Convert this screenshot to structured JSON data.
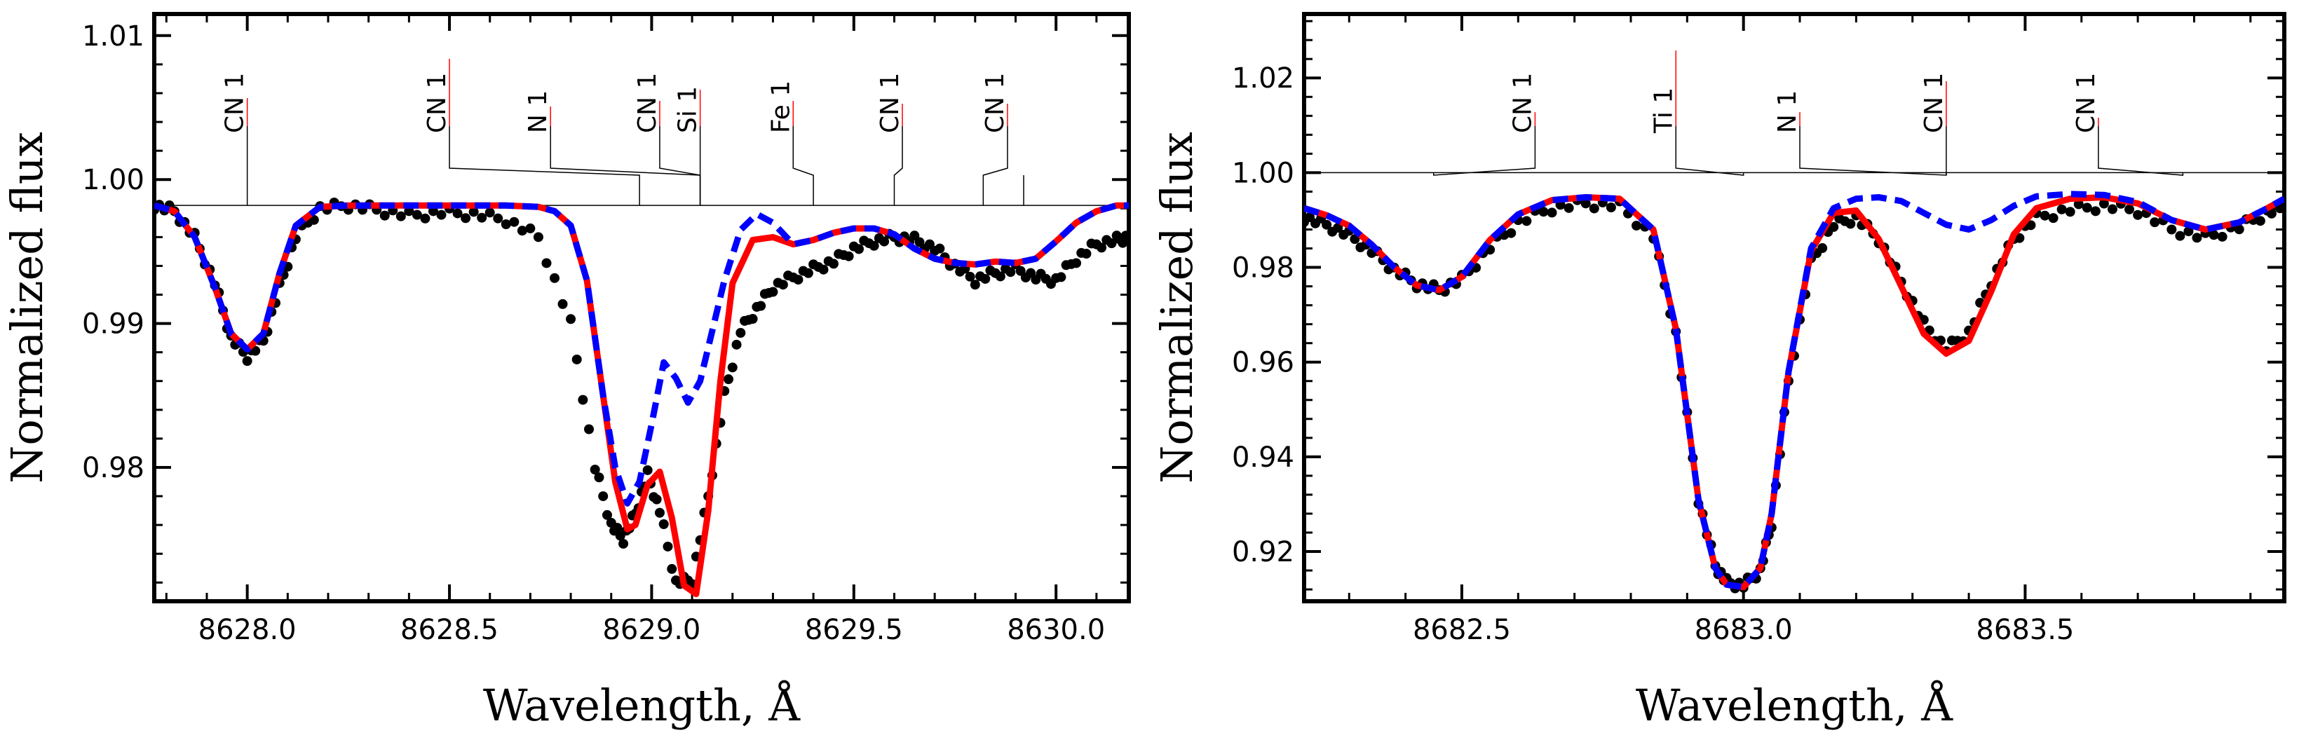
{
  "chart_data": [
    {
      "type": "line",
      "panel": "left",
      "xlabel": "Wavelength, Å",
      "ylabel": "Normalized flux",
      "xlim": [
        8627.77,
        8630.18
      ],
      "ylim": [
        0.9707,
        1.0115
      ],
      "xticks": [
        8628.0,
        8628.5,
        8629.0,
        8629.5,
        8630.0
      ],
      "xtick_labels": [
        "8628.0",
        "8628.5",
        "8629.0",
        "8629.5",
        "8630.0"
      ],
      "yticks": [
        0.98,
        0.99,
        1.0,
        1.01
      ],
      "ytick_labels": [
        "0.98",
        "0.99",
        "1.00",
        "1.01"
      ],
      "continuum": 1.0,
      "continuum_y": 0.9982,
      "series": [
        {
          "name": "observed",
          "style": "points",
          "color": "#000000",
          "x": [
            8627.77,
            8627.82,
            8627.87,
            8627.92,
            8627.96,
            8628.0,
            8628.04,
            8628.08,
            8628.12,
            8628.18,
            8628.25,
            8628.32,
            8628.4,
            8628.48,
            8628.56,
            8628.64,
            8628.72,
            8628.8,
            8628.86,
            8628.9,
            8628.93,
            8628.96,
            8628.99,
            8629.02,
            8629.06,
            8629.1,
            8629.14,
            8629.18,
            8629.22,
            8629.26,
            8629.3,
            8629.35,
            8629.4,
            8629.45,
            8629.5,
            8629.55,
            8629.6,
            8629.65,
            8629.7,
            8629.75,
            8629.8,
            8629.85,
            8629.9,
            8629.95,
            8630.0,
            8630.05,
            8630.1,
            8630.15,
            8630.18
          ],
          "y": [
            0.9982,
            0.9978,
            0.996,
            0.9928,
            0.989,
            0.9877,
            0.9888,
            0.9925,
            0.996,
            0.998,
            0.9982,
            0.9979,
            0.9975,
            0.9977,
            0.9976,
            0.9972,
            0.996,
            0.99,
            0.98,
            0.976,
            0.975,
            0.9768,
            0.9795,
            0.977,
            0.972,
            0.9722,
            0.978,
            0.985,
            0.9895,
            0.991,
            0.9925,
            0.9932,
            0.9938,
            0.9943,
            0.9952,
            0.9957,
            0.996,
            0.9958,
            0.9952,
            0.994,
            0.993,
            0.9935,
            0.9938,
            0.9932,
            0.993,
            0.9945,
            0.9955,
            0.9958,
            0.996
          ]
        },
        {
          "name": "model (red solid)",
          "style": "solid",
          "color": "#ff0000",
          "x": [
            8627.77,
            8627.82,
            8627.87,
            8627.92,
            8627.96,
            8628.0,
            8628.04,
            8628.08,
            8628.12,
            8628.18,
            8628.25,
            8628.32,
            8628.4,
            8628.48,
            8628.56,
            8628.64,
            8628.72,
            8628.76,
            8628.8,
            8628.84,
            8628.88,
            8628.91,
            8628.94,
            8628.96,
            8628.99,
            8629.02,
            8629.05,
            8629.08,
            8629.11,
            8629.14,
            8629.17,
            8629.2,
            8629.25,
            8629.3,
            8629.35,
            8629.4,
            8629.45,
            8629.5,
            8629.55,
            8629.6,
            8629.65,
            8629.7,
            8629.75,
            8629.8,
            8629.85,
            8629.9,
            8629.95,
            8630.0,
            8630.05,
            8630.1,
            8630.15,
            8630.18
          ],
          "y": [
            0.9982,
            0.9978,
            0.996,
            0.9925,
            0.9893,
            0.9882,
            0.9893,
            0.9935,
            0.9968,
            0.9981,
            0.9982,
            0.9982,
            0.9982,
            0.9982,
            0.9982,
            0.9982,
            0.9981,
            0.9978,
            0.9968,
            0.993,
            0.985,
            0.979,
            0.9757,
            0.976,
            0.9788,
            0.9797,
            0.9765,
            0.9718,
            0.9712,
            0.977,
            0.986,
            0.9928,
            0.9958,
            0.996,
            0.9955,
            0.9958,
            0.9963,
            0.9966,
            0.9966,
            0.9962,
            0.9952,
            0.9945,
            0.9942,
            0.9941,
            0.9943,
            0.9942,
            0.9945,
            0.9957,
            0.997,
            0.9978,
            0.9982,
            0.9982
          ]
        },
        {
          "name": "model (blue dashed)",
          "style": "dashed",
          "color": "#0000ff",
          "x": [
            8627.77,
            8627.82,
            8627.87,
            8627.92,
            8627.96,
            8628.0,
            8628.04,
            8628.08,
            8628.12,
            8628.18,
            8628.25,
            8628.32,
            8628.4,
            8628.48,
            8628.56,
            8628.64,
            8628.72,
            8628.76,
            8628.8,
            8628.84,
            8628.88,
            8628.91,
            8628.94,
            8628.97,
            8629.0,
            8629.03,
            8629.06,
            8629.09,
            8629.12,
            8629.15,
            8629.18,
            8629.22,
            8629.26,
            8629.3,
            8629.35,
            8629.4,
            8629.45,
            8629.5,
            8629.55,
            8629.6,
            8629.65,
            8629.7,
            8629.75,
            8629.8,
            8629.85,
            8629.9,
            8629.95,
            8630.0,
            8630.05,
            8630.1,
            8630.15,
            8630.18
          ],
          "y": [
            0.9982,
            0.9978,
            0.996,
            0.9925,
            0.9893,
            0.9882,
            0.9893,
            0.9935,
            0.9968,
            0.9981,
            0.9982,
            0.9982,
            0.9982,
            0.9982,
            0.9982,
            0.9982,
            0.9981,
            0.9978,
            0.9968,
            0.993,
            0.985,
            0.98,
            0.9775,
            0.979,
            0.983,
            0.9873,
            0.9862,
            0.9845,
            0.986,
            0.9895,
            0.993,
            0.9965,
            0.9976,
            0.997,
            0.9955,
            0.9958,
            0.9963,
            0.9966,
            0.9966,
            0.9962,
            0.9952,
            0.9945,
            0.9942,
            0.9941,
            0.9943,
            0.9942,
            0.9945,
            0.9957,
            0.997,
            0.9978,
            0.9982,
            0.9982
          ]
        }
      ],
      "line_ids": [
        {
          "label": "CN 1",
          "wavelength": 8628.0,
          "strength": 1.0
        },
        {
          "label": "CN 1",
          "wavelength": 8628.5,
          "strength": 2.4
        },
        {
          "label": "N 1",
          "wavelength": 8628.75,
          "strength": 0.7
        },
        {
          "label": "CN 1",
          "wavelength": 8629.02,
          "strength": 0.9
        },
        {
          "label": "Si 1",
          "wavelength": 8629.12,
          "strength": 1.3
        },
        {
          "label": "Fe 1",
          "wavelength": 8629.35,
          "strength": 0.9
        },
        {
          "label": "CN 1",
          "wavelength": 8629.62,
          "strength": 0.8
        },
        {
          "label": "CN 1",
          "wavelength": 8629.88,
          "strength": 0.8
        }
      ],
      "line_marker_targets": [
        8628.0,
        8628.97,
        8629.12,
        8629.12,
        8629.12,
        8629.4,
        8629.6,
        8629.82,
        8629.92
      ]
    },
    {
      "type": "line",
      "panel": "right",
      "xlabel": "Wavelength, Å",
      "ylabel": "Normalized flux",
      "xlim": [
        8682.22,
        8683.96
      ],
      "ylim": [
        0.9095,
        1.0335
      ],
      "xticks": [
        8682.5,
        8683.0,
        8683.5
      ],
      "xtick_labels": [
        "8682.5",
        "8683.0",
        "8683.5"
      ],
      "yticks": [
        0.92,
        0.94,
        0.96,
        0.98,
        1.0,
        1.02
      ],
      "ytick_labels": [
        "0.92",
        "0.94",
        "0.96",
        "0.98",
        "1.00",
        "1.02"
      ],
      "continuum": 1.0,
      "continuum_y": 1.0,
      "series": [
        {
          "name": "observed",
          "style": "points",
          "color": "#000000",
          "x": [
            8682.22,
            8682.26,
            8682.3,
            8682.34,
            8682.38,
            8682.42,
            8682.46,
            8682.5,
            8682.55,
            8682.6,
            8682.66,
            8682.72,
            8682.78,
            8682.84,
            8682.88,
            8682.92,
            8682.95,
            8682.97,
            8683.0,
            8683.03,
            8683.05,
            8683.08,
            8683.12,
            8683.16,
            8683.2,
            8683.24,
            8683.28,
            8683.32,
            8683.36,
            8683.4,
            8683.44,
            8683.48,
            8683.52,
            8683.58,
            8683.64,
            8683.7,
            8683.76,
            8683.82,
            8683.88,
            8683.93,
            8683.96
          ],
          "y": [
            0.9905,
            0.989,
            0.9868,
            0.9835,
            0.9795,
            0.9765,
            0.9752,
            0.9775,
            0.9842,
            0.9895,
            0.9925,
            0.9935,
            0.993,
            0.9865,
            0.966,
            0.931,
            0.917,
            0.9135,
            0.9128,
            0.916,
            0.926,
            0.956,
            0.981,
            0.989,
            0.9905,
            0.986,
            0.977,
            0.968,
            0.9628,
            0.9662,
            0.977,
            0.986,
            0.9905,
            0.9922,
            0.993,
            0.992,
            0.988,
            0.9863,
            0.9885,
            0.9915,
            0.9928
          ]
        },
        {
          "name": "model (red solid)",
          "style": "solid",
          "color": "#ff0000",
          "x": [
            8682.22,
            8682.26,
            8682.3,
            8682.34,
            8682.38,
            8682.42,
            8682.46,
            8682.5,
            8682.55,
            8682.6,
            8682.66,
            8682.72,
            8682.78,
            8682.84,
            8682.88,
            8682.92,
            8682.95,
            8682.97,
            8683.0,
            8683.03,
            8683.05,
            8683.08,
            8683.12,
            8683.16,
            8683.2,
            8683.24,
            8683.28,
            8683.32,
            8683.36,
            8683.4,
            8683.44,
            8683.48,
            8683.52,
            8683.58,
            8683.64,
            8683.7,
            8683.76,
            8683.82,
            8683.88,
            8683.93,
            8683.96
          ],
          "y": [
            0.9925,
            0.991,
            0.9888,
            0.9848,
            0.98,
            0.9762,
            0.9752,
            0.978,
            0.9858,
            0.9912,
            0.9942,
            0.9948,
            0.9945,
            0.988,
            0.967,
            0.931,
            0.9165,
            0.913,
            0.9125,
            0.9165,
            0.928,
            0.958,
            0.9835,
            0.9915,
            0.992,
            0.986,
            0.976,
            0.966,
            0.9618,
            0.9645,
            0.975,
            0.987,
            0.9925,
            0.9945,
            0.9948,
            0.9935,
            0.99,
            0.988,
            0.9895,
            0.9925,
            0.9945
          ]
        },
        {
          "name": "model (blue dashed)",
          "style": "dashed",
          "color": "#0000ff",
          "x": [
            8682.22,
            8682.26,
            8682.3,
            8682.34,
            8682.38,
            8682.42,
            8682.46,
            8682.5,
            8682.55,
            8682.6,
            8682.66,
            8682.72,
            8682.78,
            8682.84,
            8682.88,
            8682.92,
            8682.95,
            8682.97,
            8683.0,
            8683.03,
            8683.05,
            8683.08,
            8683.12,
            8683.16,
            8683.2,
            8683.24,
            8683.28,
            8683.32,
            8683.36,
            8683.4,
            8683.44,
            8683.48,
            8683.52,
            8683.58,
            8683.64,
            8683.7,
            8683.76,
            8683.82,
            8683.88,
            8683.93,
            8683.96
          ],
          "y": [
            0.9925,
            0.991,
            0.9888,
            0.9848,
            0.98,
            0.9762,
            0.9752,
            0.978,
            0.9858,
            0.9912,
            0.9942,
            0.9948,
            0.9945,
            0.988,
            0.967,
            0.931,
            0.9165,
            0.913,
            0.9125,
            0.9165,
            0.928,
            0.958,
            0.984,
            0.9925,
            0.9945,
            0.9948,
            0.994,
            0.9915,
            0.989,
            0.988,
            0.99,
            0.993,
            0.995,
            0.9955,
            0.9953,
            0.9938,
            0.99,
            0.988,
            0.9895,
            0.9925,
            0.9945
          ]
        }
      ],
      "line_ids": [
        {
          "label": "CN 1",
          "wavelength": 8682.63,
          "strength": 0.5
        },
        {
          "label": "Ti 1",
          "wavelength": 8682.88,
          "strength": 2.7
        },
        {
          "label": "N 1",
          "wavelength": 8683.1,
          "strength": 0.5
        },
        {
          "label": "CN 1",
          "wavelength": 8683.36,
          "strength": 1.6
        },
        {
          "label": "CN 1",
          "wavelength": 8683.63,
          "strength": 0.3
        }
      ],
      "line_marker_targets": [
        8682.45,
        8683.0,
        8683.36,
        8683.36,
        8683.78
      ]
    }
  ]
}
